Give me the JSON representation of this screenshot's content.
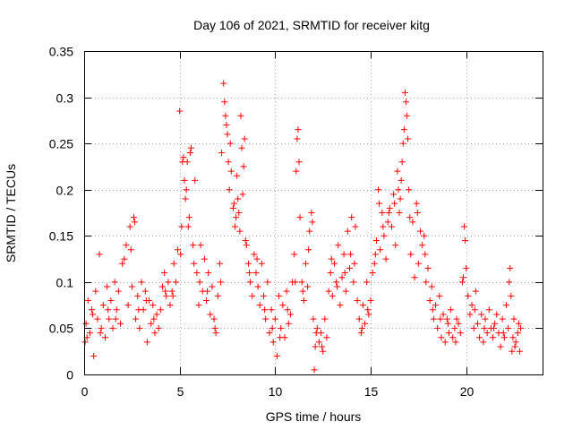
{
  "chart_data": {
    "type": "scatter",
    "title": "Day 106 of 2021, SRMTID for receiver kitg",
    "xlabel": "GPS time / hours",
    "ylabel": "SRMTID / TECUs",
    "xlim": [
      0,
      24
    ],
    "ylim": [
      0,
      0.35
    ],
    "xticks": [
      0,
      5,
      10,
      15,
      20
    ],
    "xtick_labels": [
      "0",
      "5",
      "10",
      "15",
      "20"
    ],
    "yticks": [
      0,
      0.05,
      0.1,
      0.15,
      0.2,
      0.25,
      0.3,
      0.35
    ],
    "ytick_labels": [
      "0",
      "0.05",
      "0.1",
      "0.15",
      "0.2",
      "0.25",
      "0.3",
      "0.35"
    ],
    "grid": true,
    "marker": "plus",
    "marker_color": "#ff0000",
    "series": [
      {
        "name": "SRMTID",
        "points": [
          [
            0.05,
            0.035
          ],
          [
            0.1,
            0.055
          ],
          [
            0.2,
            0.08
          ],
          [
            0.3,
            0.045
          ],
          [
            0.4,
            0.07
          ],
          [
            0.5,
            0.02
          ],
          [
            0.6,
            0.09
          ],
          [
            0.7,
            0.06
          ],
          [
            0.8,
            0.13
          ],
          [
            0.9,
            0.05
          ],
          [
            1.0,
            0.075
          ],
          [
            1.1,
            0.04
          ],
          [
            1.2,
            0.095
          ],
          [
            1.3,
            0.06
          ],
          [
            1.4,
            0.08
          ],
          [
            1.5,
            0.05
          ],
          [
            1.6,
            0.1
          ],
          [
            1.7,
            0.07
          ],
          [
            1.8,
            0.09
          ],
          [
            1.9,
            0.055
          ],
          [
            2.0,
            0.12
          ],
          [
            2.1,
            0.125
          ],
          [
            2.2,
            0.14
          ],
          [
            2.3,
            0.075
          ],
          [
            2.4,
            0.16
          ],
          [
            2.5,
            0.095
          ],
          [
            2.6,
            0.17
          ],
          [
            2.7,
            0.06
          ],
          [
            2.8,
            0.085
          ],
          [
            2.9,
            0.05
          ],
          [
            3.0,
            0.1
          ],
          [
            3.1,
            0.07
          ],
          [
            3.2,
            0.09
          ],
          [
            3.3,
            0.035
          ],
          [
            3.4,
            0.08
          ],
          [
            3.5,
            0.055
          ],
          [
            3.6,
            0.075
          ],
          [
            3.7,
            0.045
          ],
          [
            3.8,
            0.065
          ],
          [
            3.9,
            0.05
          ],
          [
            4.0,
            0.07
          ],
          [
            4.1,
            0.095
          ],
          [
            4.2,
            0.11
          ],
          [
            4.3,
            0.085
          ],
          [
            4.4,
            0.1
          ],
          [
            4.5,
            0.075
          ],
          [
            4.6,
            0.09
          ],
          [
            4.7,
            0.12
          ],
          [
            4.8,
            0.1
          ],
          [
            4.9,
            0.135
          ],
          [
            5.0,
            0.285
          ],
          [
            5.1,
            0.16
          ],
          [
            5.2,
            0.235
          ],
          [
            5.3,
            0.19
          ],
          [
            5.4,
            0.23
          ],
          [
            5.5,
            0.17
          ],
          [
            5.6,
            0.245
          ],
          [
            5.7,
            0.14
          ],
          [
            5.8,
            0.21
          ],
          [
            5.9,
            0.11
          ],
          [
            6.0,
            0.075
          ],
          [
            6.1,
            0.14
          ],
          [
            6.2,
            0.09
          ],
          [
            6.3,
            0.125
          ],
          [
            6.4,
            0.08
          ],
          [
            6.5,
            0.11
          ],
          [
            6.6,
            0.065
          ],
          [
            6.7,
            0.095
          ],
          [
            6.8,
            0.06
          ],
          [
            6.9,
            0.045
          ],
          [
            7.0,
            0.085
          ],
          [
            7.1,
            0.12
          ],
          [
            7.2,
            0.24
          ],
          [
            7.3,
            0.315
          ],
          [
            7.4,
            0.28
          ],
          [
            7.5,
            0.26
          ],
          [
            7.6,
            0.2
          ],
          [
            7.7,
            0.22
          ],
          [
            7.8,
            0.18
          ],
          [
            7.9,
            0.16
          ],
          [
            8.0,
            0.215
          ],
          [
            8.1,
            0.175
          ],
          [
            8.2,
            0.28
          ],
          [
            8.3,
            0.195
          ],
          [
            8.4,
            0.255
          ],
          [
            8.5,
            0.14
          ],
          [
            8.6,
            0.12
          ],
          [
            8.7,
            0.1
          ],
          [
            8.8,
            0.085
          ],
          [
            8.9,
            0.13
          ],
          [
            9.0,
            0.11
          ],
          [
            9.1,
            0.095
          ],
          [
            9.2,
            0.075
          ],
          [
            9.3,
            0.12
          ],
          [
            9.4,
            0.085
          ],
          [
            9.5,
            0.06
          ],
          [
            9.6,
            0.1
          ],
          [
            9.7,
            0.045
          ],
          [
            9.8,
            0.07
          ],
          [
            9.9,
            0.035
          ],
          [
            10.0,
            0.06
          ],
          [
            10.1,
            0.02
          ],
          [
            10.2,
            0.085
          ],
          [
            10.3,
            0.05
          ],
          [
            10.4,
            0.075
          ],
          [
            10.5,
            0.04
          ],
          [
            10.6,
            0.09
          ],
          [
            10.7,
            0.055
          ],
          [
            10.8,
            0.065
          ],
          [
            10.9,
            0.1
          ],
          [
            11.0,
            0.13
          ],
          [
            11.1,
            0.22
          ],
          [
            11.2,
            0.265
          ],
          [
            11.3,
            0.17
          ],
          [
            11.4,
            0.1
          ],
          [
            11.5,
            0.08
          ],
          [
            11.6,
            0.12
          ],
          [
            11.7,
            0.095
          ],
          [
            11.8,
            0.155
          ],
          [
            11.9,
            0.175
          ],
          [
            12.0,
            0.06
          ],
          [
            12.1,
            0.03
          ],
          [
            12.2,
            0.05
          ],
          [
            12.3,
            0.035
          ],
          [
            12.4,
            0.045
          ],
          [
            12.5,
            0.025
          ],
          [
            12.6,
            0.06
          ],
          [
            12.7,
            0.04
          ],
          [
            12.8,
            0.09
          ],
          [
            12.9,
            0.11
          ],
          [
            13.0,
            0.085
          ],
          [
            13.1,
            0.12
          ],
          [
            13.2,
            0.1
          ],
          [
            13.3,
            0.14
          ],
          [
            13.4,
            0.075
          ],
          [
            13.5,
            0.105
          ],
          [
            13.6,
            0.13
          ],
          [
            13.7,
            0.09
          ],
          [
            13.8,
            0.155
          ],
          [
            13.9,
            0.115
          ],
          [
            14.0,
            0.17
          ],
          [
            14.1,
            0.1
          ],
          [
            14.2,
            0.16
          ],
          [
            14.3,
            0.08
          ],
          [
            14.4,
            0.06
          ],
          [
            14.5,
            0.045
          ],
          [
            14.6,
            0.075
          ],
          [
            14.7,
            0.055
          ],
          [
            14.8,
            0.1
          ],
          [
            14.9,
            0.065
          ],
          [
            15.0,
            0.08
          ],
          [
            15.1,
            0.11
          ],
          [
            15.2,
            0.12
          ],
          [
            15.3,
            0.145
          ],
          [
            15.4,
            0.2
          ],
          [
            15.5,
            0.135
          ],
          [
            15.6,
            0.175
          ],
          [
            15.7,
            0.15
          ],
          [
            15.8,
            0.125
          ],
          [
            15.9,
            0.165
          ],
          [
            16.0,
            0.18
          ],
          [
            16.1,
            0.16
          ],
          [
            16.2,
            0.195
          ],
          [
            16.3,
            0.14
          ],
          [
            16.4,
            0.22
          ],
          [
            16.5,
            0.175
          ],
          [
            16.6,
            0.21
          ],
          [
            16.7,
            0.25
          ],
          [
            16.8,
            0.305
          ],
          [
            16.9,
            0.28
          ],
          [
            17.0,
            0.2
          ],
          [
            17.1,
            0.13
          ],
          [
            17.2,
            0.165
          ],
          [
            17.3,
            0.105
          ],
          [
            17.4,
            0.185
          ],
          [
            17.5,
            0.12
          ],
          [
            17.6,
            0.155
          ],
          [
            17.7,
            0.14
          ],
          [
            17.8,
            0.15
          ],
          [
            17.9,
            0.1
          ],
          [
            18.0,
            0.115
          ],
          [
            18.1,
            0.08
          ],
          [
            18.2,
            0.095
          ],
          [
            18.3,
            0.06
          ],
          [
            18.4,
            0.075
          ],
          [
            18.5,
            0.05
          ],
          [
            18.6,
            0.085
          ],
          [
            18.7,
            0.04
          ],
          [
            18.8,
            0.065
          ],
          [
            18.9,
            0.035
          ],
          [
            19.0,
            0.06
          ],
          [
            19.1,
            0.045
          ],
          [
            19.2,
            0.07
          ],
          [
            19.3,
            0.04
          ],
          [
            19.4,
            0.05
          ],
          [
            19.5,
            0.06
          ],
          [
            19.6,
            0.055
          ],
          [
            19.7,
            0.045
          ],
          [
            19.8,
            0.1
          ],
          [
            19.9,
            0.16
          ],
          [
            20.0,
            0.115
          ],
          [
            20.1,
            0.085
          ],
          [
            20.2,
            0.065
          ],
          [
            20.3,
            0.075
          ],
          [
            20.4,
            0.05
          ],
          [
            20.5,
            0.09
          ],
          [
            20.6,
            0.055
          ],
          [
            20.7,
            0.04
          ],
          [
            20.8,
            0.065
          ],
          [
            20.9,
            0.035
          ],
          [
            21.0,
            0.06
          ],
          [
            21.1,
            0.045
          ],
          [
            21.2,
            0.07
          ],
          [
            21.3,
            0.05
          ],
          [
            21.4,
            0.04
          ],
          [
            21.5,
            0.055
          ],
          [
            21.6,
            0.065
          ],
          [
            21.7,
            0.045
          ],
          [
            21.8,
            0.03
          ],
          [
            21.9,
            0.06
          ],
          [
            22.0,
            0.04
          ],
          [
            22.1,
            0.075
          ],
          [
            22.2,
            0.05
          ],
          [
            22.3,
            0.115
          ],
          [
            22.4,
            0.025
          ],
          [
            22.5,
            0.06
          ],
          [
            22.6,
            0.035
          ],
          [
            22.7,
            0.045
          ],
          [
            22.8,
            0.025
          ],
          [
            22.85,
            0.05
          ],
          [
            0.15,
            0.04
          ],
          [
            0.45,
            0.065
          ],
          [
            0.85,
            0.045
          ],
          [
            1.25,
            0.07
          ],
          [
            1.65,
            0.06
          ],
          [
            2.45,
            0.135
          ],
          [
            2.65,
            0.165
          ],
          [
            2.85,
            0.07
          ],
          [
            3.25,
            0.08
          ],
          [
            3.65,
            0.06
          ],
          [
            4.25,
            0.09
          ],
          [
            4.65,
            0.085
          ],
          [
            5.05,
            0.13
          ],
          [
            5.15,
            0.23
          ],
          [
            5.25,
            0.21
          ],
          [
            5.35,
            0.2
          ],
          [
            5.45,
            0.16
          ],
          [
            5.55,
            0.24
          ],
          [
            5.75,
            0.12
          ],
          [
            6.05,
            0.1
          ],
          [
            6.45,
            0.09
          ],
          [
            6.85,
            0.05
          ],
          [
            7.15,
            0.1
          ],
          [
            7.35,
            0.295
          ],
          [
            7.45,
            0.27
          ],
          [
            7.55,
            0.23
          ],
          [
            7.65,
            0.25
          ],
          [
            7.85,
            0.185
          ],
          [
            7.95,
            0.17
          ],
          [
            8.05,
            0.19
          ],
          [
            8.15,
            0.155
          ],
          [
            8.25,
            0.245
          ],
          [
            8.35,
            0.225
          ],
          [
            8.45,
            0.145
          ],
          [
            8.65,
            0.11
          ],
          [
            9.05,
            0.125
          ],
          [
            9.45,
            0.07
          ],
          [
            9.85,
            0.05
          ],
          [
            10.25,
            0.04
          ],
          [
            10.65,
            0.07
          ],
          [
            11.05,
            0.1
          ],
          [
            11.15,
            0.255
          ],
          [
            11.25,
            0.23
          ],
          [
            11.45,
            0.09
          ],
          [
            11.75,
            0.135
          ],
          [
            11.95,
            0.165
          ],
          [
            12.05,
            0.005
          ],
          [
            12.15,
            0.045
          ],
          [
            12.45,
            0.03
          ],
          [
            12.95,
            0.125
          ],
          [
            13.25,
            0.095
          ],
          [
            13.65,
            0.11
          ],
          [
            13.95,
            0.13
          ],
          [
            14.15,
            0.12
          ],
          [
            14.55,
            0.05
          ],
          [
            14.85,
            0.07
          ],
          [
            15.25,
            0.13
          ],
          [
            15.45,
            0.185
          ],
          [
            15.65,
            0.16
          ],
          [
            15.95,
            0.175
          ],
          [
            16.25,
            0.185
          ],
          [
            16.45,
            0.2
          ],
          [
            16.55,
            0.19
          ],
          [
            16.65,
            0.23
          ],
          [
            16.75,
            0.265
          ],
          [
            16.85,
            0.295
          ],
          [
            16.95,
            0.255
          ],
          [
            17.05,
            0.17
          ],
          [
            17.45,
            0.175
          ],
          [
            17.85,
            0.13
          ],
          [
            18.25,
            0.07
          ],
          [
            18.65,
            0.06
          ],
          [
            19.05,
            0.055
          ],
          [
            19.45,
            0.035
          ],
          [
            19.85,
            0.105
          ],
          [
            19.95,
            0.145
          ],
          [
            20.45,
            0.07
          ],
          [
            20.95,
            0.05
          ],
          [
            21.45,
            0.05
          ],
          [
            21.95,
            0.045
          ],
          [
            22.25,
            0.1
          ],
          [
            22.35,
            0.085
          ],
          [
            22.45,
            0.04
          ],
          [
            22.55,
            0.03
          ],
          [
            22.75,
            0.055
          ]
        ]
      }
    ]
  }
}
